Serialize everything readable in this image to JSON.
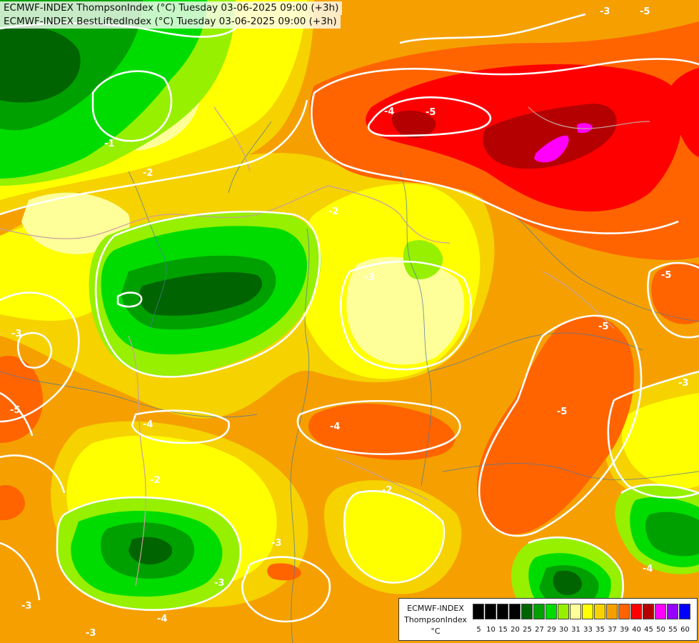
{
  "titles": {
    "line1": "ECMWF-INDEX ThompsonIndex (°C) Tuesday 03-06-2025 09:00 (+3h)",
    "line2": "ECMWF-INDEX BestLiftedIndex (°C) Tuesday 03-06-2025 09:00 (+3h)"
  },
  "legend": {
    "source": "ECMWF-INDEX",
    "parameter": "ThompsonIndex",
    "unit": "°C",
    "ticks": [
      "5",
      "10",
      "15",
      "20",
      "25",
      "27",
      "29",
      "30",
      "31",
      "33",
      "35",
      "37",
      "39",
      "40",
      "45",
      "50",
      "55",
      "60"
    ],
    "colors": [
      "#000000",
      "#000000",
      "#000000",
      "#000000",
      "#006400",
      "#00a000",
      "#00dc00",
      "#96f000",
      "#ffff99",
      "#ffff00",
      "#f5d200",
      "#f5a000",
      "#ff6400",
      "#ff0000",
      "#b40000",
      "#ff00ff",
      "#9600ff",
      "#0000ff"
    ]
  },
  "contour_labels": [
    "-5",
    "-4",
    "-5",
    "-5",
    "-5",
    "-5",
    "-4",
    "-3",
    "-3",
    "-3",
    "-2",
    "-2",
    "-3",
    "-3",
    "-4",
    "-4",
    "-3",
    "-5",
    "-2",
    "-1",
    "-3",
    "-4",
    "-3",
    "-2",
    "-3"
  ],
  "colors": {
    "ti_25": "#006400",
    "ti_27": "#00a000",
    "ti_29": "#00dc00",
    "ti_30": "#96f000",
    "ti_31": "#ffff99",
    "ti_33": "#ffff00",
    "ti_35": "#f5d200",
    "ti_37": "#f5a000",
    "ti_39": "#ff6400",
    "ti_40": "#ff0000",
    "ti_45": "#b40000",
    "ti_50": "#ff00ff",
    "contour": "#ffffff",
    "border": "#c8a0a0",
    "river": "#5078a0"
  }
}
